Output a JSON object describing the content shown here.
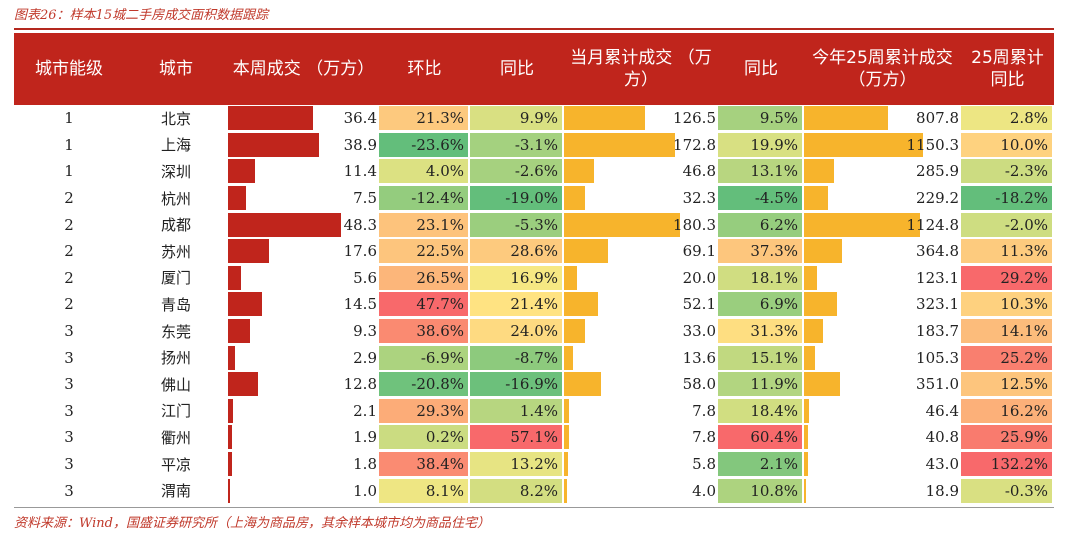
{
  "title": "图表26：样本15城二手房成交面积数据跟踪",
  "source": "资料来源：Wind，国盛证券研究所（上海为商品房，其余样本城市均为商品住宅）",
  "colors": {
    "header_bg": "#c0251c",
    "bar_red": "#c0251c",
    "bar_orange": "#f7b42c"
  },
  "headers": [
    "城市能级",
    "城市",
    "本周成交 （万方）",
    "环比",
    "同比",
    "当月累计成交 （万方）",
    "同比",
    "今年25周累计成交（万方）",
    "25周累计同比"
  ],
  "rows": [
    {
      "tier": "1",
      "city": "北京",
      "week": "36.4",
      "wow": "21.3%",
      "yoy": "9.9%",
      "month": "126.5",
      "month_yoy": "9.5%",
      "ytd": "807.8",
      "ytd_yoy": "2.8%"
    },
    {
      "tier": "1",
      "city": "上海",
      "week": "38.9",
      "wow": "-23.6%",
      "yoy": "-3.1%",
      "month": "172.8",
      "month_yoy": "19.9%",
      "ytd": "1150.3",
      "ytd_yoy": "10.0%"
    },
    {
      "tier": "1",
      "city": "深圳",
      "week": "11.4",
      "wow": "4.0%",
      "yoy": "-2.6%",
      "month": "46.8",
      "month_yoy": "13.1%",
      "ytd": "285.9",
      "ytd_yoy": "-2.3%"
    },
    {
      "tier": "2",
      "city": "杭州",
      "week": "7.5",
      "wow": "-12.4%",
      "yoy": "-19.0%",
      "month": "32.3",
      "month_yoy": "-4.5%",
      "ytd": "229.2",
      "ytd_yoy": "-18.2%"
    },
    {
      "tier": "2",
      "city": "成都",
      "week": "48.3",
      "wow": "23.1%",
      "yoy": "-5.3%",
      "month": "180.3",
      "month_yoy": "6.2%",
      "ytd": "1124.8",
      "ytd_yoy": "-2.0%"
    },
    {
      "tier": "2",
      "city": "苏州",
      "week": "17.6",
      "wow": "22.5%",
      "yoy": "28.6%",
      "month": "69.1",
      "month_yoy": "37.3%",
      "ytd": "364.8",
      "ytd_yoy": "11.3%"
    },
    {
      "tier": "2",
      "city": "厦门",
      "week": "5.6",
      "wow": "26.5%",
      "yoy": "16.9%",
      "month": "20.0",
      "month_yoy": "18.1%",
      "ytd": "123.1",
      "ytd_yoy": "29.2%"
    },
    {
      "tier": "2",
      "city": "青岛",
      "week": "14.5",
      "wow": "47.7%",
      "yoy": "21.4%",
      "month": "52.1",
      "month_yoy": "6.9%",
      "ytd": "323.1",
      "ytd_yoy": "10.3%"
    },
    {
      "tier": "3",
      "city": "东莞",
      "week": "9.3",
      "wow": "38.6%",
      "yoy": "24.0%",
      "month": "33.0",
      "month_yoy": "31.3%",
      "ytd": "183.7",
      "ytd_yoy": "14.1%"
    },
    {
      "tier": "3",
      "city": "扬州",
      "week": "2.9",
      "wow": "-6.9%",
      "yoy": "-8.7%",
      "month": "13.6",
      "month_yoy": "15.1%",
      "ytd": "105.3",
      "ytd_yoy": "25.2%"
    },
    {
      "tier": "3",
      "city": "佛山",
      "week": "12.8",
      "wow": "-20.8%",
      "yoy": "-16.9%",
      "month": "58.0",
      "month_yoy": "11.9%",
      "ytd": "351.0",
      "ytd_yoy": "12.5%"
    },
    {
      "tier": "3",
      "city": "江门",
      "week": "2.1",
      "wow": "29.3%",
      "yoy": "1.4%",
      "month": "7.8",
      "month_yoy": "18.4%",
      "ytd": "46.4",
      "ytd_yoy": "16.2%"
    },
    {
      "tier": "3",
      "city": "衢州",
      "week": "1.9",
      "wow": "0.2%",
      "yoy": "57.1%",
      "month": "7.8",
      "month_yoy": "60.4%",
      "ytd": "40.8",
      "ytd_yoy": "25.9%"
    },
    {
      "tier": "3",
      "city": "平凉",
      "week": "1.8",
      "wow": "38.4%",
      "yoy": "13.2%",
      "month": "5.8",
      "month_yoy": "2.1%",
      "ytd": "43.0",
      "ytd_yoy": "132.2%"
    },
    {
      "tier": "3",
      "city": "渭南",
      "week": "1.0",
      "wow": "8.1%",
      "yoy": "8.2%",
      "month": "4.0",
      "month_yoy": "10.8%",
      "ytd": "18.9",
      "ytd_yoy": "-0.3%"
    }
  ]
}
